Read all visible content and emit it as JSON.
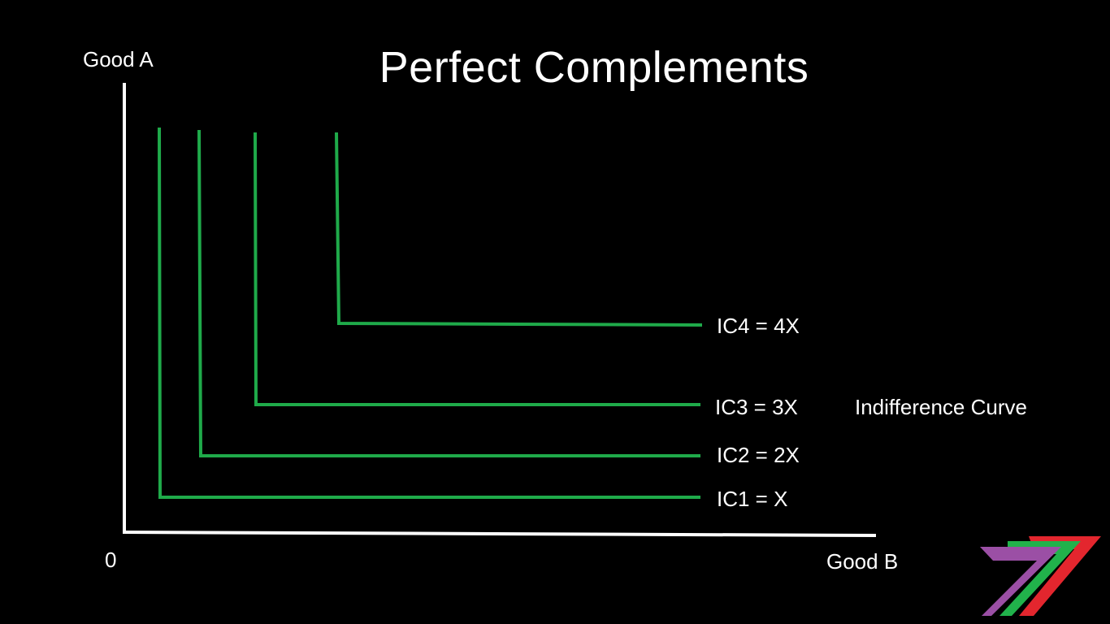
{
  "title": "Perfect Complements",
  "axes": {
    "y_label": "Good A",
    "x_label": "Good B",
    "origin_label": "0"
  },
  "curves": [
    {
      "label": "IC1 = X"
    },
    {
      "label": "IC2 = 2X"
    },
    {
      "label": "IC3 = 3X"
    },
    {
      "label": "IC4 = 4X"
    }
  ],
  "curve_caption": "Indifference Curve",
  "colors": {
    "background": "#000000",
    "axis": "#ffffff",
    "curve": "#1faa4a",
    "text": "#ffffff",
    "logo_purple": "#9b4fa5",
    "logo_green": "#21b24b",
    "logo_red": "#e3262e"
  }
}
